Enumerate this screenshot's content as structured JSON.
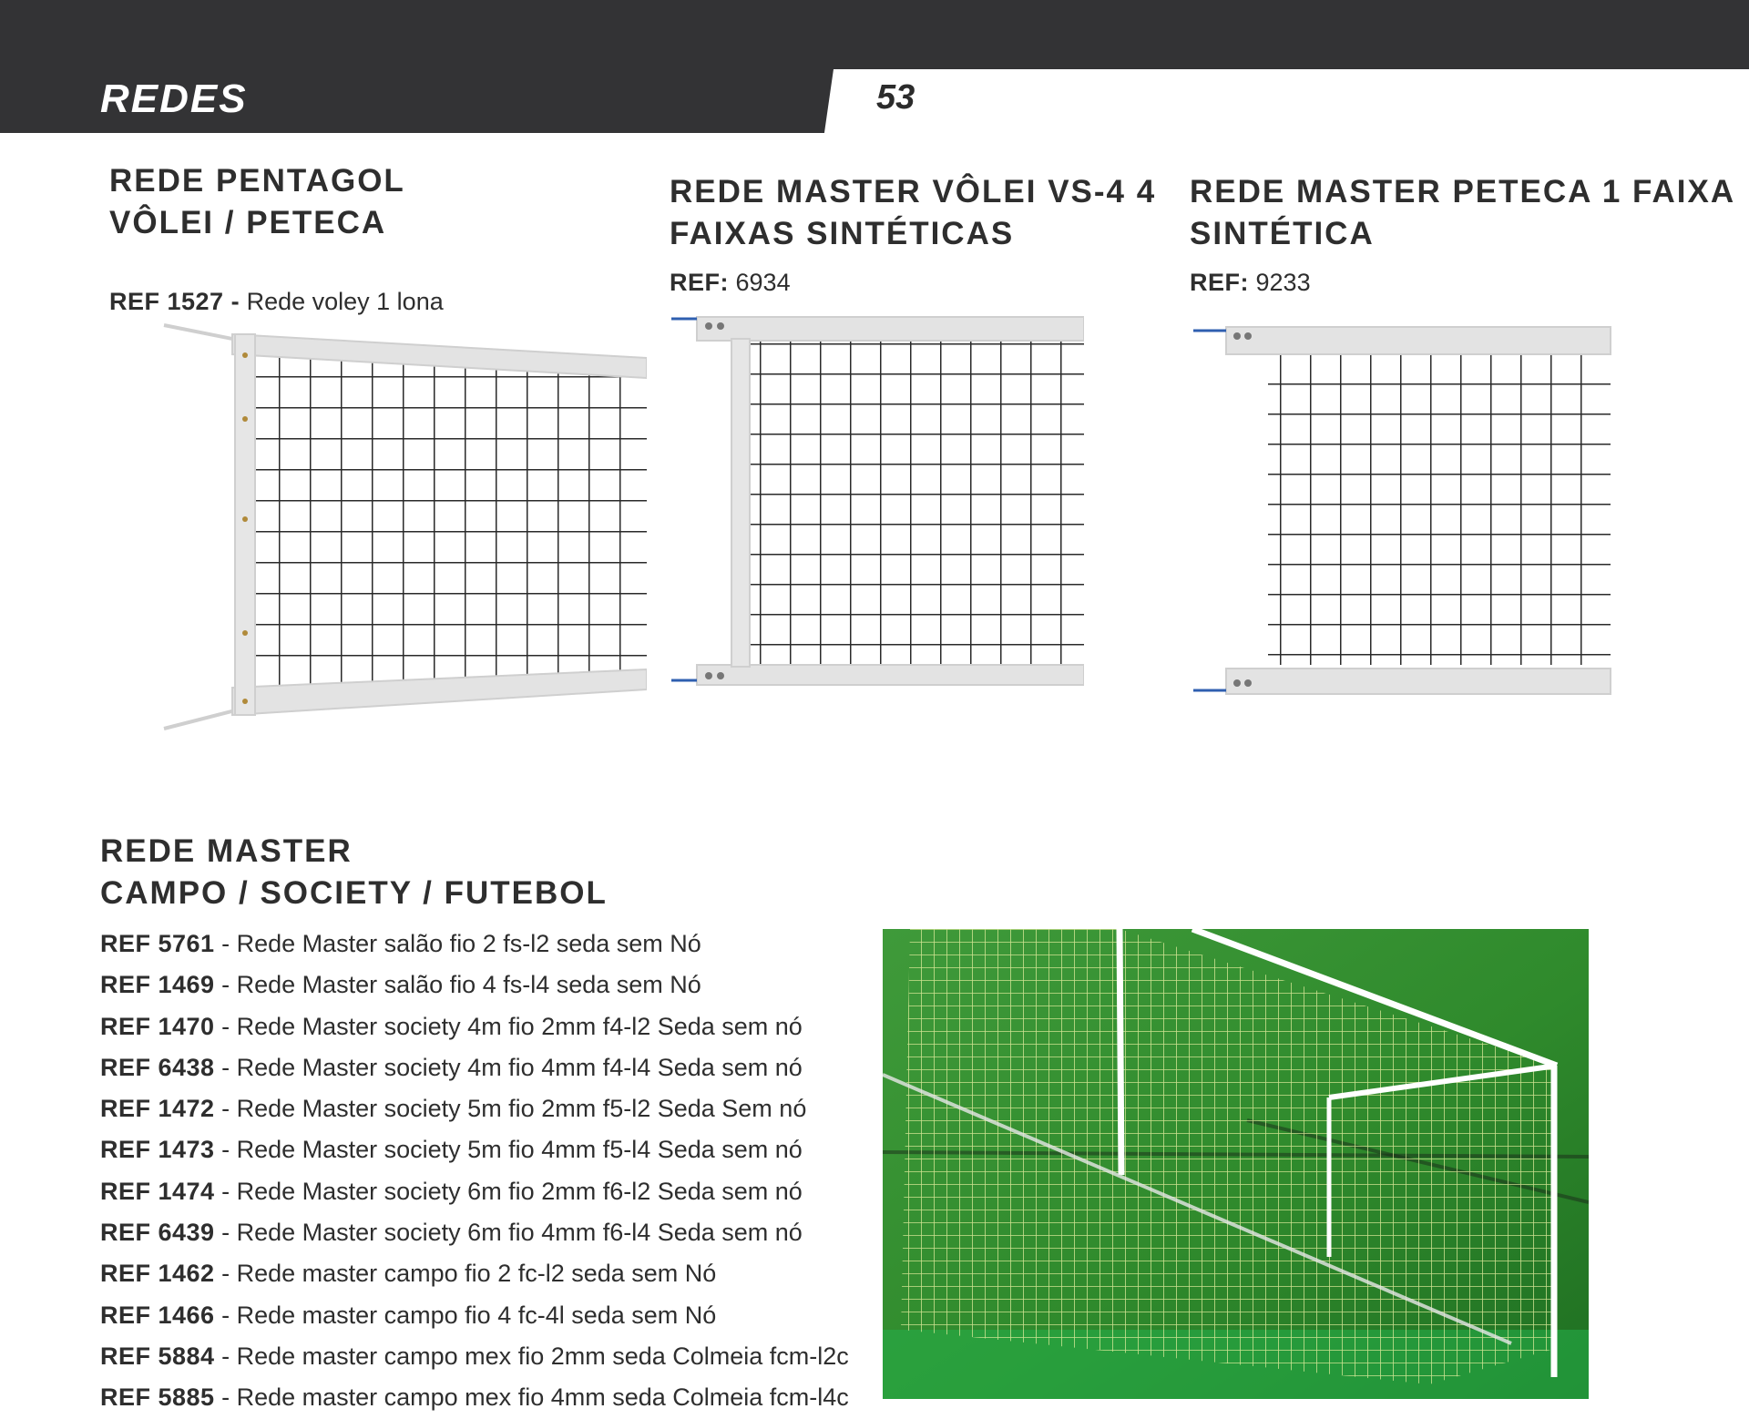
{
  "header": {
    "section_title": "REDES",
    "page_number": "53"
  },
  "products": [
    {
      "title_line1": "REDE PENTAGOL",
      "title_line2": "VÔLEI / PETECA",
      "ref_label": "REF 1527 -",
      "ref_value": "Rede voley 1 lona",
      "image_icon": "volleyball-net-icon"
    },
    {
      "title_line1": "REDE MASTER VÔLEI VS-4 4",
      "title_line2": "FAIXAS SINTÉTICAS",
      "ref_label": "REF:",
      "ref_value": "6934",
      "image_icon": "volleyball-net-icon"
    },
    {
      "title_line1": "REDE MASTER PETECA 1 FAIXA",
      "title_line2": "SINTÉTICA",
      "ref_label": "REF:",
      "ref_value": "9233",
      "image_icon": "peteca-net-icon"
    }
  ],
  "futebol": {
    "title_line1": "REDE MASTER",
    "title_line2": "CAMPO / SOCIETY / FUTEBOL",
    "items": [
      {
        "ref": "REF 5761",
        "desc": " - Rede Master salão fio 2 fs-l2 seda sem Nó"
      },
      {
        "ref": "REF 1469",
        "desc": " - Rede Master salão fio 4 fs-l4 seda sem Nó"
      },
      {
        "ref": "REF 1470",
        "desc": " - Rede Master society 4m fio 2mm  f4-l2  Seda sem nó"
      },
      {
        "ref": "REF 6438",
        "desc": " - Rede Master society 4m fio 4mm f4-l4  Seda sem nó"
      },
      {
        "ref": "REF 1472",
        "desc": " - Rede Master society 5m fio 2mm f5-l2 Seda Sem nó"
      },
      {
        "ref": "REF 1473",
        "desc": " - Rede Master society 5m fio 4mm f5-l4 Seda sem nó"
      },
      {
        "ref": "REF 1474",
        "desc": " - Rede Master society 6m fio 2mm f6-l2 Seda sem nó"
      },
      {
        "ref": "REF 6439",
        "desc": " - Rede Master society 6m fio 4mm f6-l4 Seda sem nó"
      },
      {
        "ref": "REF 1462",
        "desc": " - Rede master campo fio 2 fc-l2 seda sem Nó"
      },
      {
        "ref": "REF 1466",
        "desc": " - Rede master campo fio 4 fc-4l seda sem Nó"
      },
      {
        "ref": "REF 5884",
        "desc": " - Rede master campo mex fio 2mm seda Colmeia fcm-l2c"
      },
      {
        "ref": "REF 5885",
        "desc": " - Rede master campo mex fio 4mm seda Colmeia fcm-l4c"
      }
    ],
    "image_icon": "soccer-goal-net-icon"
  },
  "colors": {
    "header_bg": "#333335",
    "text": "#2e2e2e",
    "band": "#e3e3e3",
    "field": "#2f8a2c"
  }
}
